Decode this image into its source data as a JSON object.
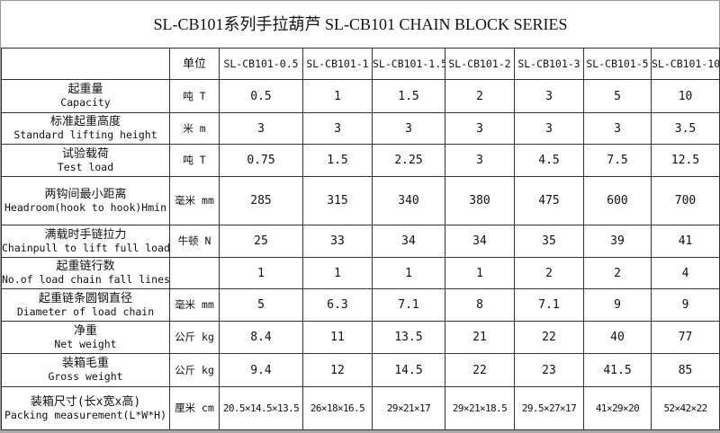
{
  "title": "SL-CB101系列手拉葫芦   SL-CB101 CHAIN BLOCK SERIES",
  "header": {
    "unit_label": "单位",
    "models": [
      "SL-CB101-0.5",
      "SL-CB101-1",
      "SL-CB101-1.5",
      "SL-CB101-2",
      "SL-CB101-3",
      "SL-CB101-5",
      "SL-CB101-10"
    ]
  },
  "rows": [
    {
      "cn": "起重量",
      "en": "Capacity",
      "unit": "吨 T",
      "values": [
        "0.5",
        "1",
        "1.5",
        "2",
        "3",
        "5",
        "10"
      ]
    },
    {
      "cn": "标准起重高度",
      "en": "Standard lifting height",
      "unit": "米 m",
      "values": [
        "3",
        "3",
        "3",
        "3",
        "3",
        "3",
        "3.5"
      ]
    },
    {
      "cn": "试验载荷",
      "en": "Test load",
      "unit": "吨 T",
      "values": [
        "0.75",
        "1.5",
        "2.25",
        "3",
        "4.5",
        "7.5",
        "12.5"
      ]
    },
    {
      "cn": "两钩间最小距离",
      "en": "Headroom(hook to hook)Hmin",
      "unit": "毫米 mm",
      "values": [
        "285",
        "315",
        "340",
        "380",
        "475",
        "600",
        "700"
      ]
    },
    {
      "cn": "满载时手链拉力",
      "en": "Chainpull to lift full load",
      "unit": "牛顿 N",
      "values": [
        "25",
        "33",
        "34",
        "34",
        "35",
        "39",
        "41"
      ]
    },
    {
      "cn": "起重链行数",
      "en": "No.of load chain fall lines",
      "unit": "",
      "values": [
        "1",
        "1",
        "1",
        "1",
        "2",
        "2",
        "4"
      ]
    },
    {
      "cn": "起重链条圆钢直径",
      "en": "Diameter of load chain",
      "unit": "毫米 mm",
      "values": [
        "5",
        "6.3",
        "7.1",
        "8",
        "7.1",
        "9",
        "9"
      ]
    },
    {
      "cn": "净重",
      "en": "Net weight",
      "unit": "公斤 kg",
      "values": [
        "8.4",
        "11",
        "13.5",
        "21",
        "22",
        "40",
        "77"
      ]
    },
    {
      "cn": "装箱毛重",
      "en": "Gross weight",
      "unit": "公斤 kg",
      "values": [
        "9.4",
        "12",
        "14.5",
        "22",
        "23",
        "41.5",
        "85"
      ]
    },
    {
      "cn": "装箱尺寸(长x宽x高)",
      "en": "Packing measurement(L*W*H)",
      "unit": "厘米 cm",
      "values": [
        "20.5×14.5×13.5",
        "26×18×16.5",
        "29×21×17",
        "29×21×18.5",
        "29.5×27×17",
        "41×29×20",
        "52×42×22"
      ]
    }
  ]
}
